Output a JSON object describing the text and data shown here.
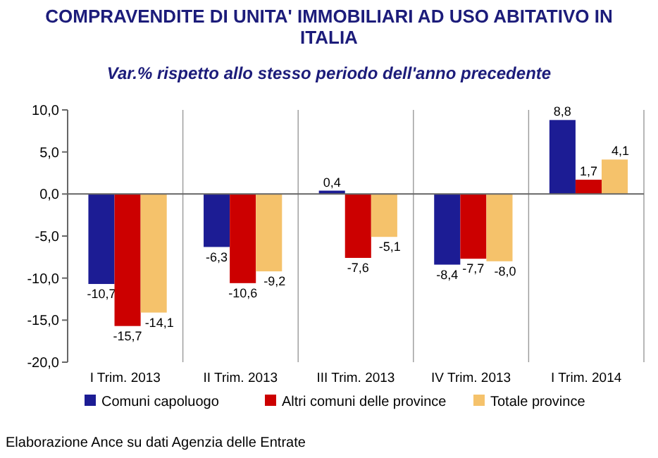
{
  "chart_data": {
    "type": "bar",
    "title": "COMPRAVENDITE DI UNITA' IMMOBILIARI AD USO ABITATIVO IN ITALIA",
    "subtitle": "Var.% rispetto allo stesso periodo dell'anno precedente",
    "categories": [
      "I Trim. 2013",
      "II Trim. 2013",
      "III Trim. 2013",
      "IV Trim. 2013",
      "I Trim. 2014"
    ],
    "series": [
      {
        "name": "Comuni capoluogo",
        "color": "#1c1c94",
        "values": [
          -10.7,
          -6.3,
          0.4,
          -8.4,
          8.8
        ],
        "value_labels": [
          "-10,7",
          "-6,3",
          "0,4",
          "-8,4",
          "8,8"
        ]
      },
      {
        "name": "Altri comuni delle province",
        "color": "#cc0000",
        "values": [
          -15.7,
          -10.6,
          -7.6,
          -7.7,
          1.7
        ],
        "value_labels": [
          "-15,7",
          "-10,6",
          "-7,6",
          "-7,7",
          "1,7"
        ]
      },
      {
        "name": "Totale province",
        "color": "#f5c26b",
        "values": [
          -14.1,
          -9.2,
          -5.1,
          -8.0,
          4.1
        ],
        "value_labels": [
          "-14,1",
          "-9,2",
          "-5,1",
          "-8,0",
          "4,1"
        ]
      }
    ],
    "ylim": [
      -20,
      10
    ],
    "yticks": [
      {
        "value": -20,
        "label": "-20,0"
      },
      {
        "value": -15,
        "label": "-15,0"
      },
      {
        "value": -10,
        "label": "-10,0"
      },
      {
        "value": -5,
        "label": "-5,0"
      },
      {
        "value": 0,
        "label": "0,0"
      },
      {
        "value": 5,
        "label": "5,0"
      },
      {
        "value": 10,
        "label": "10,0"
      }
    ],
    "grid": "x",
    "legend": "bottom",
    "annotations": [
      "Elaborazione Ance su dati Agenzia delle Entrate"
    ]
  }
}
